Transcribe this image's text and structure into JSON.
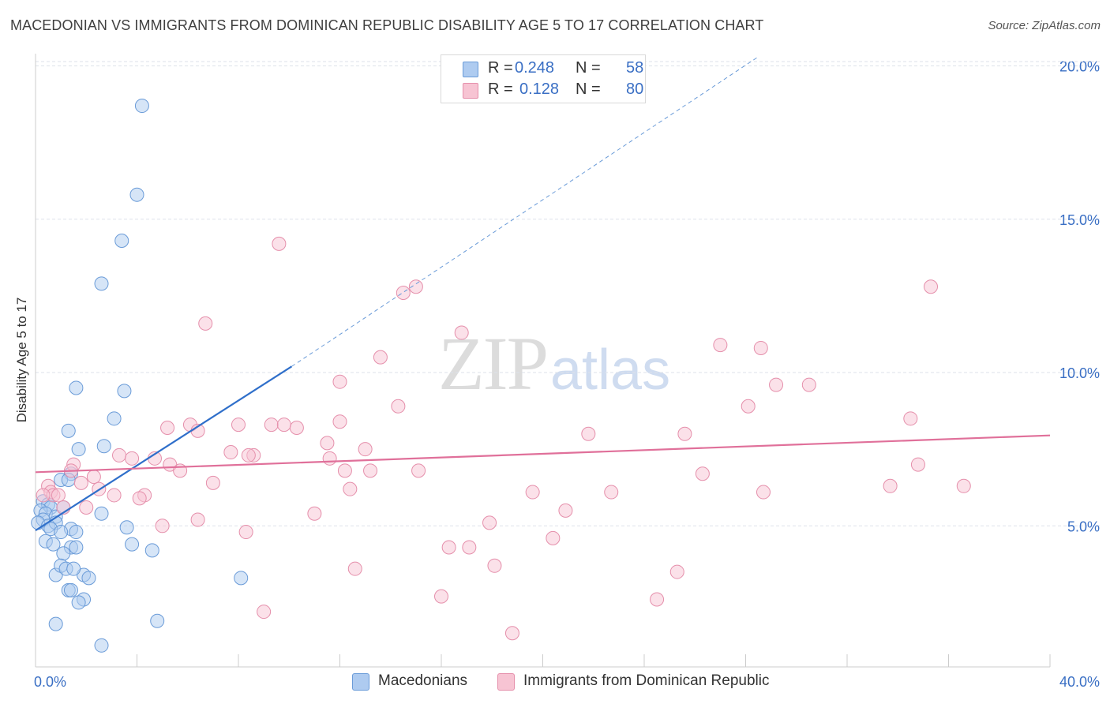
{
  "title": "MACEDONIAN VS IMMIGRANTS FROM DOMINICAN REPUBLIC DISABILITY AGE 5 TO 17 CORRELATION CHART",
  "source": "Source: ZipAtlas.com",
  "watermark": {
    "zip": "ZIP",
    "atlas": "atlas"
  },
  "legend_top": {
    "rows": [
      {
        "r_label": "R =",
        "r_value": "0.248",
        "n_label": "N =",
        "n_value": "58"
      },
      {
        "r_label": "R =",
        "r_value": "0.128",
        "n_label": "N =",
        "n_value": "80"
      }
    ]
  },
  "colors": {
    "blue_fill": "#aecbf0",
    "blue_stroke": "#6a9bd8",
    "blue_line": "#2f6fca",
    "pink_fill": "#f7c4d3",
    "pink_stroke": "#e58fab",
    "pink_line": "#e0709a",
    "tick_label": "#3a6fc4",
    "grid": "#dde2ea"
  },
  "chart_data": {
    "type": "scatter",
    "title": "MACEDONIAN VS IMMIGRANTS FROM DOMINICAN REPUBLIC DISABILITY AGE 5 TO 17 CORRELATION CHART",
    "xlabel": "",
    "ylabel": "Disability Age 5 to 17",
    "xlim": [
      0,
      40
    ],
    "ylim": [
      0.4,
      20.4
    ],
    "x_tick_labels": [
      "0.0%",
      "40.0%"
    ],
    "y_ticks": [
      5,
      10,
      15,
      20
    ],
    "y_tick_labels": [
      "5.0%",
      "10.0%",
      "15.0%",
      "20.0%"
    ],
    "grid": true,
    "legend": "bottom",
    "series": [
      {
        "name": "Macedonians",
        "color": "blue",
        "r": 0.248,
        "n": 58,
        "trend": {
          "x0": 0,
          "y0": 4.85,
          "x1": 10.1,
          "y1": 10.2,
          "dashed_to_x": 28.5,
          "dashed_to_y": 20.3
        },
        "points": [
          [
            4.2,
            18.7
          ],
          [
            4.0,
            15.8
          ],
          [
            3.4,
            14.3
          ],
          [
            2.6,
            12.9
          ],
          [
            1.6,
            9.5
          ],
          [
            3.5,
            9.4
          ],
          [
            3.1,
            8.5
          ],
          [
            1.3,
            8.1
          ],
          [
            1.7,
            7.5
          ],
          [
            2.7,
            7.6
          ],
          [
            1.4,
            6.7
          ],
          [
            1.0,
            6.5
          ],
          [
            1.3,
            6.5
          ],
          [
            0.3,
            5.8
          ],
          [
            0.5,
            5.7
          ],
          [
            0.6,
            5.6
          ],
          [
            0.2,
            5.5
          ],
          [
            0.4,
            5.4
          ],
          [
            0.8,
            5.3
          ],
          [
            0.3,
            5.2
          ],
          [
            1.1,
            5.6
          ],
          [
            0.1,
            5.1
          ],
          [
            0.5,
            5.0
          ],
          [
            0.8,
            5.1
          ],
          [
            0.6,
            4.9
          ],
          [
            1.4,
            4.9
          ],
          [
            1.6,
            4.8
          ],
          [
            1.0,
            4.8
          ],
          [
            2.6,
            5.4
          ],
          [
            3.6,
            4.95
          ],
          [
            0.4,
            4.5
          ],
          [
            0.7,
            4.4
          ],
          [
            1.4,
            4.3
          ],
          [
            1.6,
            4.3
          ],
          [
            3.8,
            4.4
          ],
          [
            4.6,
            4.2
          ],
          [
            1.1,
            4.1
          ],
          [
            1.9,
            3.4
          ],
          [
            2.1,
            3.3
          ],
          [
            0.8,
            3.4
          ],
          [
            1.0,
            3.7
          ],
          [
            1.2,
            3.6
          ],
          [
            1.5,
            3.6
          ],
          [
            1.3,
            2.9
          ],
          [
            1.4,
            2.9
          ],
          [
            1.9,
            2.6
          ],
          [
            1.7,
            2.5
          ],
          [
            8.1,
            3.3
          ],
          [
            0.8,
            1.8
          ],
          [
            4.8,
            1.9
          ],
          [
            2.6,
            1.1
          ]
        ]
      },
      {
        "name": "Immigrants from Dominican Republic",
        "color": "pink",
        "r": 0.128,
        "n": 80,
        "trend": {
          "x0": 0,
          "y0": 6.75,
          "x1": 40,
          "y1": 7.95
        },
        "points": [
          [
            9.6,
            14.2
          ],
          [
            15.0,
            12.8
          ],
          [
            14.5,
            12.6
          ],
          [
            6.7,
            11.6
          ],
          [
            16.8,
            11.3
          ],
          [
            35.3,
            12.8
          ],
          [
            13.6,
            10.5
          ],
          [
            27.0,
            10.9
          ],
          [
            28.6,
            10.8
          ],
          [
            12.0,
            9.7
          ],
          [
            29.2,
            9.6
          ],
          [
            30.5,
            9.6
          ],
          [
            14.3,
            8.9
          ],
          [
            28.1,
            8.9
          ],
          [
            34.5,
            8.5
          ],
          [
            5.2,
            8.2
          ],
          [
            6.1,
            8.3
          ],
          [
            6.4,
            8.1
          ],
          [
            8.0,
            8.3
          ],
          [
            9.3,
            8.3
          ],
          [
            9.8,
            8.3
          ],
          [
            10.3,
            8.2
          ],
          [
            12.0,
            8.4
          ],
          [
            21.8,
            8.0
          ],
          [
            25.6,
            8.0
          ],
          [
            11.5,
            7.7
          ],
          [
            13.0,
            7.5
          ],
          [
            7.7,
            7.4
          ],
          [
            8.6,
            7.3
          ],
          [
            8.4,
            7.3
          ],
          [
            3.3,
            7.3
          ],
          [
            3.8,
            7.2
          ],
          [
            4.7,
            7.2
          ],
          [
            11.6,
            7.2
          ],
          [
            5.3,
            7.0
          ],
          [
            1.5,
            7.0
          ],
          [
            5.7,
            6.8
          ],
          [
            1.4,
            6.8
          ],
          [
            12.2,
            6.8
          ],
          [
            13.2,
            6.8
          ],
          [
            15.1,
            6.8
          ],
          [
            34.8,
            7.0
          ],
          [
            2.3,
            6.6
          ],
          [
            1.8,
            6.4
          ],
          [
            7.0,
            6.4
          ],
          [
            26.3,
            6.7
          ],
          [
            0.5,
            6.3
          ],
          [
            0.6,
            6.1
          ],
          [
            0.7,
            6.0
          ],
          [
            0.9,
            6.0
          ],
          [
            0.3,
            6.0
          ],
          [
            2.5,
            6.2
          ],
          [
            3.1,
            6.0
          ],
          [
            4.3,
            6.0
          ],
          [
            4.1,
            5.9
          ],
          [
            12.4,
            6.2
          ],
          [
            19.6,
            6.1
          ],
          [
            22.7,
            6.1
          ],
          [
            28.7,
            6.1
          ],
          [
            33.7,
            6.3
          ],
          [
            36.6,
            6.3
          ],
          [
            1.1,
            5.6
          ],
          [
            2.0,
            5.6
          ],
          [
            11.0,
            5.4
          ],
          [
            20.9,
            5.5
          ],
          [
            6.4,
            5.2
          ],
          [
            17.9,
            5.1
          ],
          [
            5.0,
            5.0
          ],
          [
            8.3,
            4.8
          ],
          [
            20.4,
            4.6
          ],
          [
            16.3,
            4.3
          ],
          [
            17.1,
            4.3
          ],
          [
            12.6,
            3.6
          ],
          [
            18.1,
            3.7
          ],
          [
            25.3,
            3.5
          ],
          [
            16.0,
            2.7
          ],
          [
            24.5,
            2.6
          ],
          [
            9.0,
            2.2
          ],
          [
            18.8,
            1.5
          ]
        ]
      }
    ]
  }
}
